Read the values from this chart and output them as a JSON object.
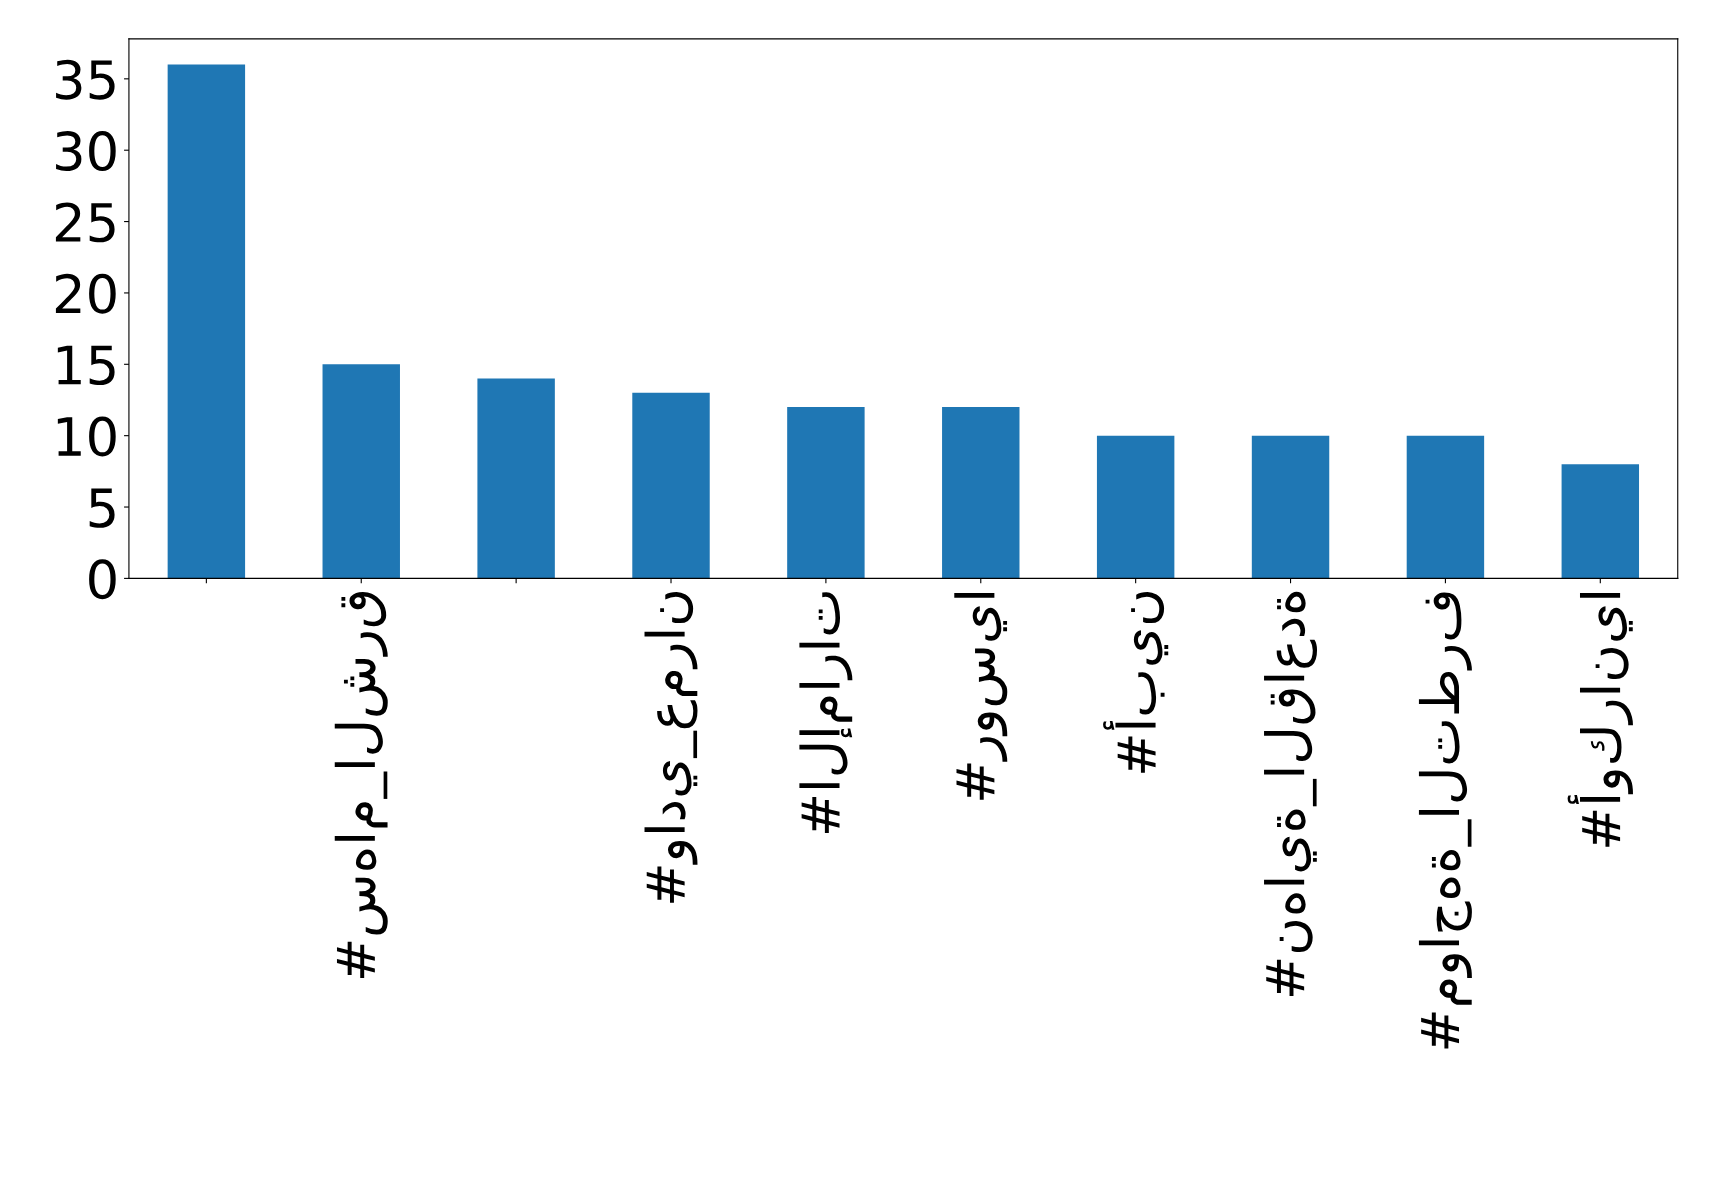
{
  "chart_data": {
    "type": "bar",
    "categories": [
      null,
      "#سهام_الشرق",
      null,
      "#وادي_عمران",
      "#الإمارات",
      "#روسيا",
      "#أبين",
      "#نهاية_القاعدة",
      "#مواجهة_التطرف",
      "#أوكرانيا"
    ],
    "values": [
      36,
      15,
      14,
      13,
      12,
      12,
      10,
      10,
      10,
      8
    ],
    "color": "#1f77b4",
    "ylim": [
      0,
      37.8
    ],
    "yticks": [
      0,
      5,
      10,
      15,
      20,
      25,
      30,
      35
    ],
    "grid": false,
    "legend": false
  }
}
